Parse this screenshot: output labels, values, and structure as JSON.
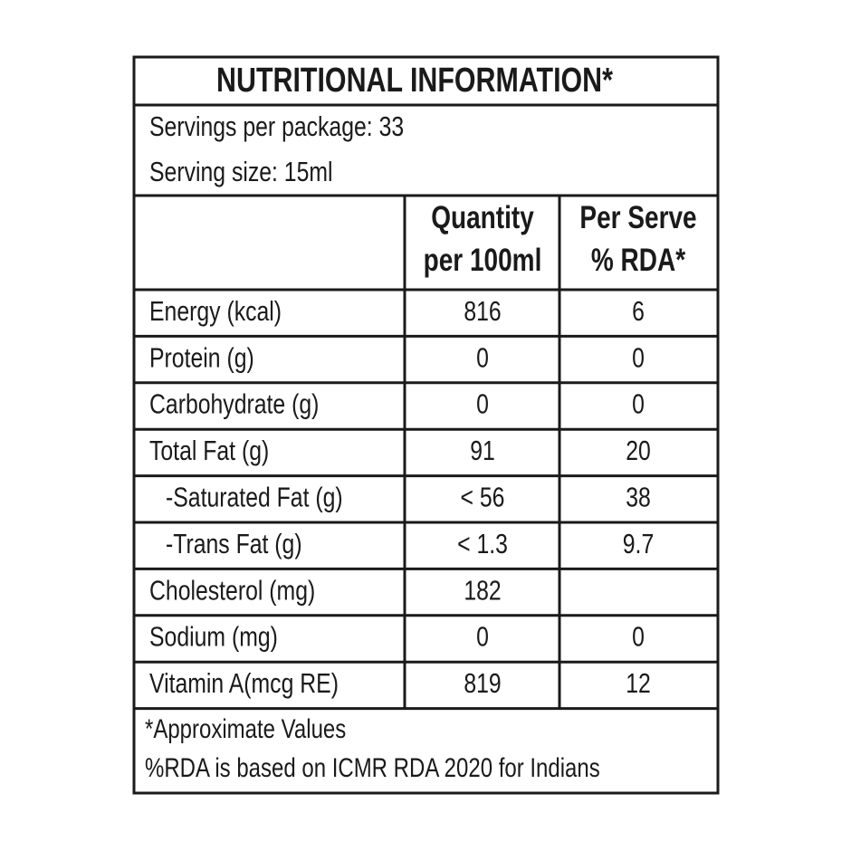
{
  "header": {
    "title": "NUTRITIONAL INFORMATION*"
  },
  "servings": {
    "per_package": "Servings per package: 33",
    "size": "Serving size: 15ml"
  },
  "table": {
    "columns": [
      [
        "Quantity",
        "per 100ml"
      ],
      [
        "Per Serve",
        "% RDA*"
      ]
    ],
    "rows": [
      {
        "name": "Energy (kcal)",
        "quantity": "816",
        "rda": "6"
      },
      {
        "name": "Protein (g)",
        "quantity": "0",
        "rda": "0"
      },
      {
        "name": "Carbohydrate (g)",
        "quantity": "0",
        "rda": "0"
      },
      {
        "name": "Total Fat (g)",
        "quantity": "91",
        "rda": "20"
      },
      {
        "name": "-Saturated Fat (g)",
        "quantity": "< 56",
        "rda": "38"
      },
      {
        "name": "-Trans Fat (g)",
        "quantity": "< 1.3",
        "rda": "9.7"
      },
      {
        "name": "Cholesterol (mg)",
        "quantity": "182"
      },
      {
        "name": "Sodium (mg)",
        "quantity": "0",
        "rda": "0"
      },
      {
        "name": "Vitamin A(mcg RE)",
        "quantity": "819",
        "rda": "12"
      }
    ]
  },
  "footer": {
    "notes": [
      "*Approximate Values",
      "%RDA is based on ICMR RDA 2020 for Indians"
    ]
  }
}
